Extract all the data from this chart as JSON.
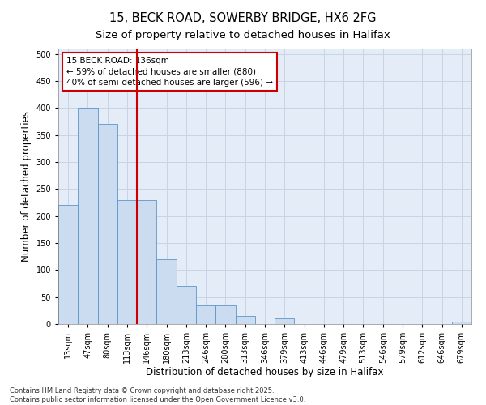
{
  "title_line1": "15, BECK ROAD, SOWERBY BRIDGE, HX6 2FG",
  "title_line2": "Size of property relative to detached houses in Halifax",
  "xlabel": "Distribution of detached houses by size in Halifax",
  "ylabel": "Number of detached properties",
  "categories": [
    "13sqm",
    "47sqm",
    "80sqm",
    "113sqm",
    "146sqm",
    "180sqm",
    "213sqm",
    "246sqm",
    "280sqm",
    "313sqm",
    "346sqm",
    "379sqm",
    "413sqm",
    "446sqm",
    "479sqm",
    "513sqm",
    "546sqm",
    "579sqm",
    "612sqm",
    "646sqm",
    "679sqm"
  ],
  "values": [
    220,
    400,
    370,
    230,
    230,
    120,
    70,
    35,
    35,
    15,
    0,
    10,
    0,
    0,
    0,
    0,
    0,
    0,
    0,
    0,
    5
  ],
  "bar_color": "#ccdcf0",
  "bar_edge_color": "#5a96c8",
  "vline_x": 4,
  "vline_color": "#cc0000",
  "annotation_text": "15 BECK ROAD: 136sqm\n← 59% of detached houses are smaller (880)\n40% of semi-detached houses are larger (596) →",
  "annotation_box_color": "#ffffff",
  "annotation_box_edge": "#cc0000",
  "ylim": [
    0,
    510
  ],
  "yticks": [
    0,
    50,
    100,
    150,
    200,
    250,
    300,
    350,
    400,
    450,
    500
  ],
  "grid_color": "#c8d4e4",
  "background_color": "#e4ecf8",
  "footer": "Contains HM Land Registry data © Crown copyright and database right 2025.\nContains public sector information licensed under the Open Government Licence v3.0.",
  "title_fontsize": 10.5,
  "subtitle_fontsize": 9.5,
  "label_fontsize": 8.5,
  "tick_fontsize": 7,
  "annotation_fontsize": 7.5,
  "footer_fontsize": 6
}
